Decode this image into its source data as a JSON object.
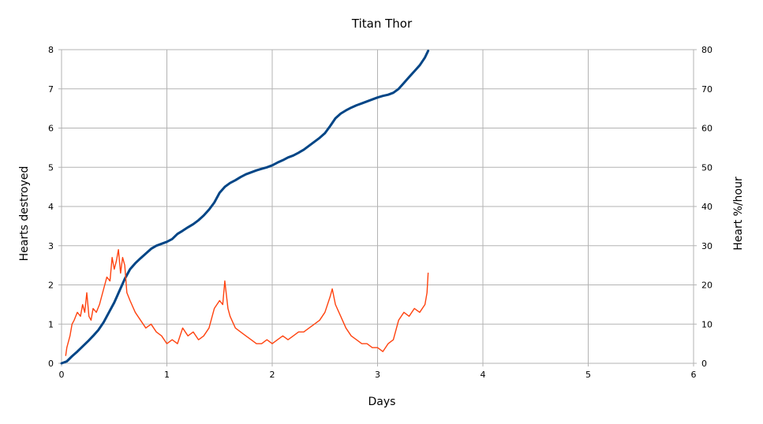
{
  "chart_data": {
    "type": "line",
    "title": "Titan Thor",
    "xlabel": "Days",
    "ylabel_left": "Hearts destroyed",
    "ylabel_right": "Heart %/hour",
    "xlim": [
      0,
      6
    ],
    "ylim_left": [
      0,
      8
    ],
    "ylim_right": [
      0,
      80
    ],
    "x_ticks": [
      "0",
      "1",
      "2",
      "3",
      "4",
      "5",
      "6"
    ],
    "y_left_ticks": [
      "0",
      "1",
      "2",
      "3",
      "4",
      "5",
      "6",
      "7",
      "8"
    ],
    "y_right_ticks": [
      "0",
      "10",
      "20",
      "30",
      "40",
      "50",
      "60",
      "70",
      "80"
    ],
    "grid": true,
    "series": [
      {
        "axis": "left",
        "color": "#004586",
        "x": [
          0,
          0.05,
          0.1,
          0.15,
          0.2,
          0.25,
          0.3,
          0.35,
          0.4,
          0.45,
          0.5,
          0.55,
          0.6,
          0.65,
          0.7,
          0.75,
          0.8,
          0.85,
          0.9,
          0.95,
          1.0,
          1.05,
          1.1,
          1.15,
          1.2,
          1.25,
          1.3,
          1.35,
          1.4,
          1.45,
          1.5,
          1.55,
          1.6,
          1.65,
          1.7,
          1.75,
          1.8,
          1.85,
          1.9,
          1.95,
          2.0,
          2.05,
          2.1,
          2.15,
          2.2,
          2.25,
          2.3,
          2.35,
          2.4,
          2.45,
          2.5,
          2.55,
          2.6,
          2.65,
          2.7,
          2.75,
          2.8,
          2.85,
          2.9,
          2.95,
          3.0,
          3.05,
          3.1,
          3.15,
          3.2,
          3.25,
          3.3,
          3.35,
          3.4,
          3.45,
          3.48
        ],
        "values": [
          0.0,
          0.05,
          0.18,
          0.3,
          0.43,
          0.56,
          0.7,
          0.85,
          1.05,
          1.3,
          1.55,
          1.85,
          2.15,
          2.4,
          2.55,
          2.68,
          2.8,
          2.92,
          3.0,
          3.05,
          3.1,
          3.17,
          3.3,
          3.38,
          3.47,
          3.55,
          3.65,
          3.77,
          3.92,
          4.1,
          4.35,
          4.5,
          4.6,
          4.67,
          4.75,
          4.82,
          4.87,
          4.92,
          4.96,
          5.0,
          5.05,
          5.12,
          5.18,
          5.25,
          5.3,
          5.37,
          5.45,
          5.55,
          5.65,
          5.75,
          5.87,
          6.05,
          6.25,
          6.37,
          6.45,
          6.52,
          6.58,
          6.63,
          6.68,
          6.73,
          6.78,
          6.82,
          6.85,
          6.9,
          7.0,
          7.15,
          7.3,
          7.45,
          7.6,
          7.8,
          7.97
        ]
      },
      {
        "axis": "right",
        "color": "#ff420e",
        "x": [
          0.04,
          0.05,
          0.08,
          0.1,
          0.12,
          0.15,
          0.18,
          0.2,
          0.22,
          0.24,
          0.26,
          0.28,
          0.3,
          0.33,
          0.36,
          0.4,
          0.43,
          0.46,
          0.48,
          0.5,
          0.52,
          0.54,
          0.56,
          0.58,
          0.6,
          0.62,
          0.65,
          0.7,
          0.75,
          0.8,
          0.85,
          0.9,
          0.95,
          1.0,
          1.05,
          1.1,
          1.15,
          1.2,
          1.25,
          1.3,
          1.35,
          1.4,
          1.45,
          1.5,
          1.53,
          1.55,
          1.58,
          1.6,
          1.65,
          1.7,
          1.75,
          1.8,
          1.85,
          1.9,
          1.95,
          2.0,
          2.05,
          2.1,
          2.15,
          2.2,
          2.25,
          2.3,
          2.35,
          2.4,
          2.45,
          2.5,
          2.55,
          2.57,
          2.6,
          2.65,
          2.7,
          2.75,
          2.8,
          2.85,
          2.9,
          2.95,
          3.0,
          3.05,
          3.1,
          3.15,
          3.2,
          3.25,
          3.3,
          3.35,
          3.4,
          3.45,
          3.47,
          3.48
        ],
        "values": [
          2,
          4,
          7,
          10,
          11,
          13,
          12,
          15,
          13,
          18,
          12,
          11,
          14,
          13,
          15,
          19,
          22,
          21,
          27,
          24,
          26,
          29,
          23,
          27,
          25,
          18,
          16,
          13,
          11,
          9,
          10,
          8,
          7,
          5,
          6,
          5,
          9,
          7,
          8,
          6,
          7,
          9,
          14,
          16,
          15,
          21,
          14,
          12,
          9,
          8,
          7,
          6,
          5,
          5,
          6,
          5,
          6,
          7,
          6,
          7,
          8,
          8,
          9,
          10,
          11,
          13,
          17,
          19,
          15,
          12,
          9,
          7,
          6,
          5,
          5,
          4,
          4,
          3,
          5,
          6,
          11,
          13,
          12,
          14,
          13,
          15,
          18,
          23
        ]
      }
    ]
  }
}
